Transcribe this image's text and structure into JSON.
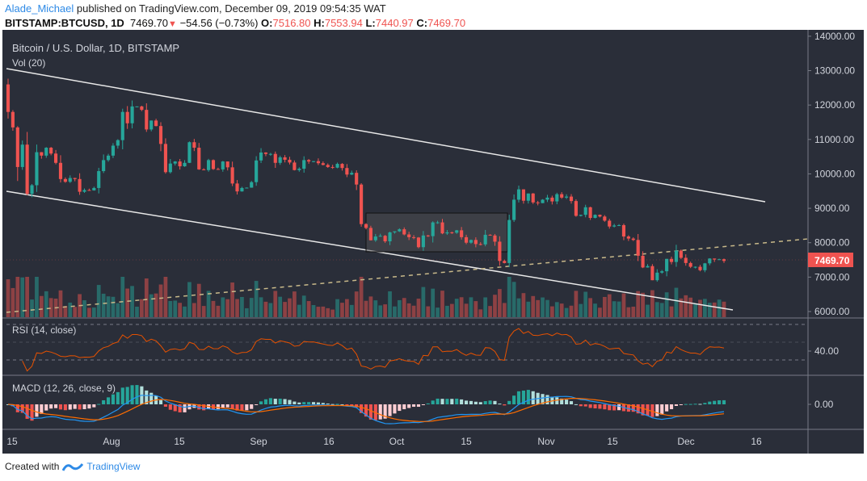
{
  "header": {
    "author": "Alade_Michael",
    "published_text": "published on TradingView.com, December 09, 2019 09:54:35 WAT",
    "symbol": "BITSTAMP:BTCUSD, 1D",
    "last": "7469.70",
    "change": "−54.56 (−0.73%)",
    "o_label": "O:",
    "o": "7516.80",
    "h_label": "H:",
    "h": "7553.94",
    "l_label": "L:",
    "l": "7440.97",
    "c_label": "C:",
    "c": "7469.70"
  },
  "footer": {
    "created_with": "Created with",
    "brand": "TradingView"
  },
  "chart_data": {
    "type": "candlestick",
    "title": "Bitcoin / U.S. Dollar, 1D, BITSTAMP",
    "volume_label": "Vol (20)",
    "rsi_label": "RSI (14, close)",
    "macd_label": "MACD (12, 26, close, 9)",
    "last_price_label": "7469.70",
    "price_ticks": [
      "14000.00",
      "13000.00",
      "12000.00",
      "11000.00",
      "10000.00",
      "9000.00",
      "8000.00",
      "7000.00",
      "6000.00"
    ],
    "price_tick_values": [
      14000,
      13000,
      12000,
      11000,
      10000,
      9000,
      8000,
      7000,
      6000
    ],
    "ylim": [
      5850,
      14050
    ],
    "rsi_tick": "40.00",
    "macd_tick": "0.00",
    "x_ticks": [
      "15",
      "Aug",
      "15",
      "Sep",
      "16",
      "Oct",
      "15",
      "Nov",
      "15",
      "Dec",
      "16"
    ],
    "first_open": 12600,
    "closes": [
      11800,
      11350,
      10200,
      10850,
      9420,
      9670,
      10630,
      10530,
      10760,
      10590,
      10320,
      9850,
      9770,
      9880,
      9850,
      9480,
      9530,
      9520,
      9590,
      10080,
      10400,
      10530,
      10820,
      10980,
      11800,
      11470,
      11960,
      11960,
      11860,
      11290,
      11550,
      11390,
      10870,
      10050,
      10300,
      10360,
      10220,
      10320,
      10920,
      10760,
      10130,
      10110,
      10400,
      10140,
      10130,
      10360,
      10190,
      9720,
      9490,
      9590,
      9600,
      9760,
      10390,
      10620,
      10580,
      10580,
      10320,
      10480,
      10410,
      10330,
      10110,
      10150,
      10400,
      10360,
      10370,
      10310,
      10260,
      10200,
      10180,
      10290,
      10170,
      9980,
      10030,
      9690,
      8540,
      8430,
      8070,
      8180,
      8200,
      8040,
      8300,
      8330,
      8390,
      8240,
      8160,
      8150,
      7870,
      8210,
      8190,
      8590,
      8590,
      8270,
      8300,
      8290,
      8360,
      8160,
      8000,
      8080,
      7960,
      7950,
      8230,
      8210,
      8030,
      7470,
      7410,
      8660,
      9250,
      9550,
      9220,
      9430,
      9170,
      9150,
      9250,
      9310,
      9200,
      9410,
      9310,
      9340,
      9210,
      8780,
      8810,
      9030,
      8720,
      8810,
      8760,
      8640,
      8470,
      8500,
      8510,
      8180,
      8120,
      8080,
      7620,
      7280,
      7320,
      6910,
      7130,
      7170,
      7530,
      7440,
      7770,
      7560,
      7410,
      7300,
      7300,
      7200,
      7400,
      7540,
      7510,
      7520,
      7469.7
    ],
    "colors": {
      "up": "#26a69a",
      "down": "#ef5350",
      "rsi": "#e65100",
      "macd": "#2196f3",
      "signal": "#ff6d00",
      "background": "#2a2e39"
    }
  }
}
